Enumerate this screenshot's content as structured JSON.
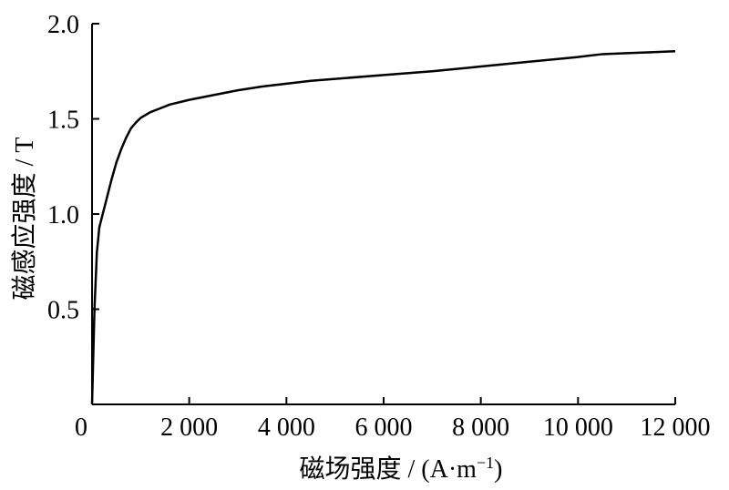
{
  "chart_data": {
    "type": "line",
    "xlabel": "磁场强度 / (A·m",
    "xlabel_superscript": "−1",
    "xlabel_suffix": ")",
    "ylabel": "磁感应强度 / T",
    "origin_label": "0",
    "xlim": [
      0,
      12000
    ],
    "ylim": [
      0,
      2.0
    ],
    "x_ticks": [
      {
        "value": 2000,
        "label": "2 000"
      },
      {
        "value": 4000,
        "label": "4 000"
      },
      {
        "value": 6000,
        "label": "6 000"
      },
      {
        "value": 8000,
        "label": "8 000"
      },
      {
        "value": 10000,
        "label": "10 000"
      },
      {
        "value": 12000,
        "label": "12 000"
      }
    ],
    "y_ticks": [
      {
        "value": 0.5,
        "label": "0.5"
      },
      {
        "value": 1.0,
        "label": "1.0"
      },
      {
        "value": 1.5,
        "label": "1.5"
      },
      {
        "value": 2.0,
        "label": "2.0"
      }
    ],
    "grid": false,
    "series": [
      {
        "color": "#000000",
        "x": [
          0,
          50,
          100,
          150,
          200,
          300,
          400,
          500,
          600,
          700,
          800,
          900,
          1000,
          1100,
          1200,
          1400,
          1600,
          2000,
          2500,
          3000,
          3500,
          4000,
          4500,
          5000,
          6000,
          7000,
          8000,
          9000,
          10000,
          10500,
          11000,
          11500,
          12000
        ],
        "y": [
          0,
          0.5,
          0.8,
          0.93,
          0.98,
          1.08,
          1.18,
          1.27,
          1.34,
          1.4,
          1.45,
          1.48,
          1.505,
          1.52,
          1.535,
          1.555,
          1.575,
          1.6,
          1.625,
          1.65,
          1.67,
          1.685,
          1.7,
          1.71,
          1.73,
          1.75,
          1.775,
          1.8,
          1.825,
          1.84,
          1.845,
          1.85,
          1.855
        ]
      }
    ]
  }
}
